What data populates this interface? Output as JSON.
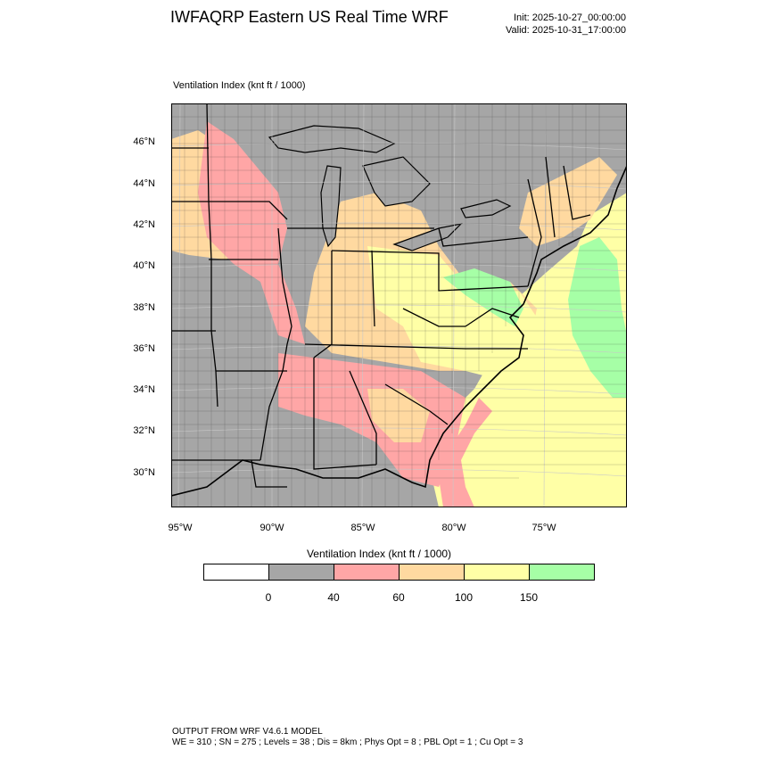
{
  "header": {
    "title": "IWFAQRP Eastern US Real Time WRF",
    "init": "Init: 2025-10-27_00:00:00",
    "valid": "Valid: 2025-10-31_17:00:00"
  },
  "plot": {
    "label": "Ventilation Index   (knt ft / 1000)",
    "lat_labels": [
      "46°N",
      "44°N",
      "42°N",
      "40°N",
      "38°N",
      "36°N",
      "34°N",
      "32°N",
      "30°N"
    ],
    "lon_labels": [
      "95°W",
      "90°W",
      "85°W",
      "80°W",
      "75°W"
    ]
  },
  "colorbar": {
    "title": "Ventilation Index  (knt ft / 1000)",
    "ticks": [
      "0",
      "40",
      "60",
      "100",
      "150"
    ],
    "colors": [
      "#ffffff",
      "#a6a6a6",
      "#ffa6a6",
      "#ffd9a0",
      "#ffffa6",
      "#a6ffa6"
    ]
  },
  "map_colors": {
    "missing": "#a6a6a6",
    "low": "#ffa6a6",
    "mid": "#ffd9a0",
    "high": "#ffffa6",
    "top": "#a6ffa6",
    "water": "#a6a6a6"
  },
  "footer": {
    "line1": "OUTPUT FROM WRF V4.6.1 MODEL",
    "line2": "WE = 310 ; SN = 275 ; Levels = 38 ; Dis = 8km ; Phys Opt = 8 ; PBL Opt = 1 ; Cu Opt = 3"
  }
}
